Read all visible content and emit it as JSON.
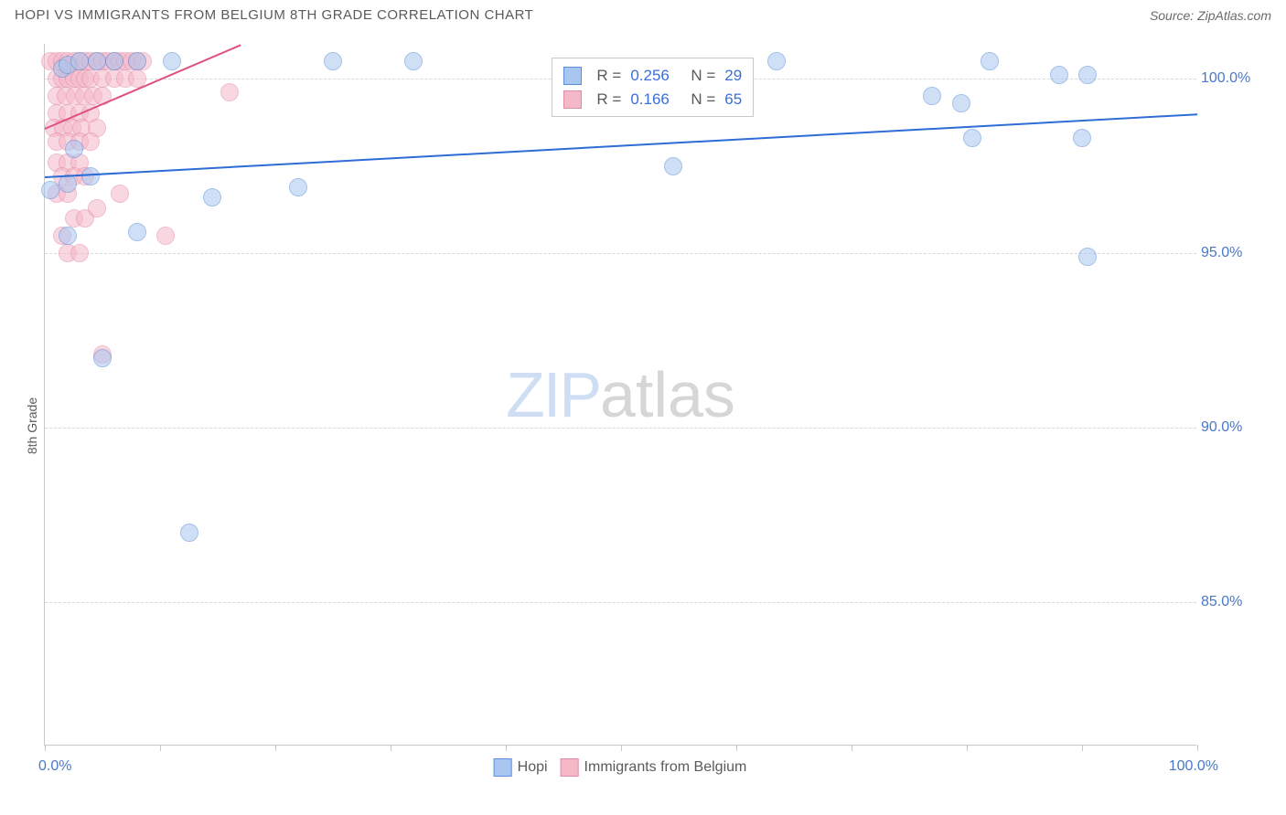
{
  "title": "HOPI VS IMMIGRANTS FROM BELGIUM 8TH GRADE CORRELATION CHART",
  "source": "Source: ZipAtlas.com",
  "ylabel": "8th Grade",
  "watermark": {
    "part1": "ZIP",
    "part2": "atlas"
  },
  "chart": {
    "type": "scatter",
    "background_color": "#ffffff",
    "grid_color": "#d8d8d8",
    "axis_color": "#c8c8c8",
    "x_range": [
      0,
      100
    ],
    "y_range": [
      80.9,
      101.0
    ],
    "y_ticks": [
      85.0,
      90.0,
      95.0,
      100.0
    ],
    "y_tick_labels": [
      "85.0%",
      "90.0%",
      "95.0%",
      "100.0%"
    ],
    "x_tick_positions": [
      0,
      10,
      20,
      30,
      40,
      50,
      60,
      70,
      80,
      90,
      100
    ],
    "x_min_label": "0.0%",
    "x_max_label": "100.0%",
    "tick_label_color": "#4a78c8",
    "tick_label_fontsize": 16,
    "marker_radius": 10,
    "marker_opacity": 0.55,
    "series": [
      {
        "name": "Hopi",
        "color_fill": "#a8c6f0",
        "color_stroke": "#5b8fd8",
        "R": "0.256",
        "N": "29",
        "trend": {
          "x1": 0,
          "y1": 97.2,
          "x2": 100,
          "y2": 99.0,
          "color": "#2e6cd6",
          "width": 2
        },
        "points": [
          [
            1.5,
            100.3
          ],
          [
            2.0,
            100.4
          ],
          [
            3.0,
            100.5
          ],
          [
            4.5,
            100.5
          ],
          [
            6.0,
            100.5
          ],
          [
            8.0,
            100.5
          ],
          [
            11.0,
            100.5
          ],
          [
            25.0,
            100.5
          ],
          [
            32.0,
            100.5
          ],
          [
            63.5,
            100.5
          ],
          [
            82.0,
            100.5
          ],
          [
            88.0,
            100.1
          ],
          [
            90.5,
            100.1
          ],
          [
            77.0,
            99.5
          ],
          [
            79.5,
            99.3
          ],
          [
            80.5,
            98.3
          ],
          [
            90.0,
            98.3
          ],
          [
            54.5,
            97.5
          ],
          [
            14.5,
            96.6
          ],
          [
            22.0,
            96.9
          ],
          [
            0.5,
            96.8
          ],
          [
            2.5,
            98.0
          ],
          [
            8.0,
            95.6
          ],
          [
            2.0,
            95.5
          ],
          [
            90.5,
            94.9
          ],
          [
            5.0,
            92.0
          ],
          [
            12.5,
            87.0
          ],
          [
            2.0,
            97.0
          ],
          [
            4.0,
            97.2
          ]
        ]
      },
      {
        "name": "Immigrants from Belgium",
        "color_fill": "#f5b8c9",
        "color_stroke": "#e38aa5",
        "R": "0.166",
        "N": "65",
        "trend": {
          "x1": 0,
          "y1": 98.6,
          "x2": 17,
          "y2": 101.0,
          "color": "#e05080",
          "width": 2
        },
        "points": [
          [
            0.5,
            100.5
          ],
          [
            1.0,
            100.5
          ],
          [
            1.5,
            100.5
          ],
          [
            2.0,
            100.5
          ],
          [
            2.5,
            100.5
          ],
          [
            3.0,
            100.5
          ],
          [
            3.5,
            100.5
          ],
          [
            4.0,
            100.5
          ],
          [
            4.5,
            100.5
          ],
          [
            5.0,
            100.5
          ],
          [
            5.5,
            100.5
          ],
          [
            6.0,
            100.5
          ],
          [
            6.5,
            100.5
          ],
          [
            7.0,
            100.5
          ],
          [
            7.5,
            100.5
          ],
          [
            8.0,
            100.5
          ],
          [
            8.5,
            100.5
          ],
          [
            1.0,
            100.0
          ],
          [
            1.5,
            100.0
          ],
          [
            2.0,
            100.0
          ],
          [
            2.5,
            100.0
          ],
          [
            3.0,
            100.0
          ],
          [
            3.5,
            100.0
          ],
          [
            4.0,
            100.0
          ],
          [
            5.0,
            100.0
          ],
          [
            6.0,
            100.0
          ],
          [
            7.0,
            100.0
          ],
          [
            8.0,
            100.0
          ],
          [
            1.0,
            99.5
          ],
          [
            1.8,
            99.5
          ],
          [
            2.6,
            99.5
          ],
          [
            3.4,
            99.5
          ],
          [
            4.2,
            99.5
          ],
          [
            5.0,
            99.5
          ],
          [
            1.0,
            99.0
          ],
          [
            2.0,
            99.0
          ],
          [
            3.0,
            99.0
          ],
          [
            4.0,
            99.0
          ],
          [
            16.0,
            99.6
          ],
          [
            0.8,
            98.6
          ],
          [
            1.6,
            98.6
          ],
          [
            2.4,
            98.6
          ],
          [
            3.2,
            98.6
          ],
          [
            4.5,
            98.6
          ],
          [
            1.0,
            98.2
          ],
          [
            2.0,
            98.2
          ],
          [
            3.0,
            98.2
          ],
          [
            4.0,
            98.2
          ],
          [
            1.0,
            97.6
          ],
          [
            2.0,
            97.6
          ],
          [
            3.0,
            97.6
          ],
          [
            1.5,
            97.2
          ],
          [
            2.5,
            97.2
          ],
          [
            3.5,
            97.2
          ],
          [
            1.0,
            96.7
          ],
          [
            2.0,
            96.7
          ],
          [
            6.5,
            96.7
          ],
          [
            2.5,
            96.0
          ],
          [
            3.5,
            96.0
          ],
          [
            1.5,
            95.5
          ],
          [
            10.5,
            95.5
          ],
          [
            2.0,
            95.0
          ],
          [
            3.0,
            95.0
          ],
          [
            5.0,
            92.1
          ],
          [
            4.5,
            96.3
          ]
        ]
      }
    ],
    "top_legend": {
      "left_pct": 44.0,
      "top_pct": 2.0,
      "R_label": "R =",
      "N_label": "N ="
    },
    "bottom_legend_labels": [
      "Hopi",
      "Immigrants from Belgium"
    ]
  }
}
